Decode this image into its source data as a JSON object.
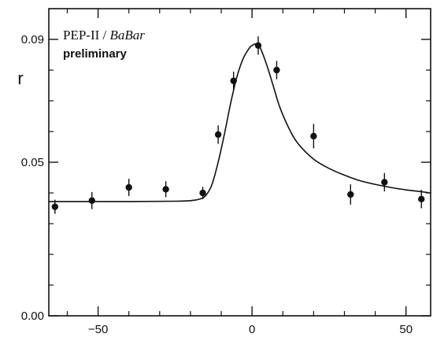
{
  "chart_data": {
    "type": "scatter",
    "title": "",
    "xlabel": "",
    "ylabel": "r",
    "xlim": [
      -66,
      58
    ],
    "ylim": [
      0.0,
      0.1
    ],
    "grid": false,
    "legend": "none",
    "annotations": {
      "experiment_plain": "PEP-II / ",
      "experiment_italic": "BaBar",
      "status": "preliminary"
    },
    "x_ticks": [
      {
        "value": -50,
        "label": "−50"
      },
      {
        "value": 0,
        "label": "0"
      },
      {
        "value": 50,
        "label": "50"
      }
    ],
    "x_minor_ticks": [
      -60,
      -40,
      -30,
      -20,
      -10,
      10,
      20,
      30,
      40
    ],
    "y_ticks": [
      {
        "value": 0.0,
        "label": "0.00"
      },
      {
        "value": 0.05,
        "label": "0.05"
      },
      {
        "value": 0.09,
        "label": "0.09"
      }
    ],
    "y_minor_ticks": [
      0.01,
      0.02,
      0.03,
      0.04,
      0.06,
      0.07,
      0.08
    ],
    "series": [
      {
        "kind": "points_with_errors",
        "points": [
          {
            "x": -64,
            "y": 0.0355,
            "err": 0.0023
          },
          {
            "x": -52,
            "y": 0.0375,
            "err": 0.0028
          },
          {
            "x": -40,
            "y": 0.0418,
            "err": 0.0028
          },
          {
            "x": -28,
            "y": 0.0412,
            "err": 0.0026
          },
          {
            "x": -16,
            "y": 0.04,
            "err": 0.002
          },
          {
            "x": -11,
            "y": 0.059,
            "err": 0.003
          },
          {
            "x": -6,
            "y": 0.0765,
            "err": 0.003
          },
          {
            "x": 2,
            "y": 0.088,
            "err": 0.003
          },
          {
            "x": 8,
            "y": 0.08,
            "err": 0.003
          },
          {
            "x": 20,
            "y": 0.0585,
            "err": 0.004
          },
          {
            "x": 32,
            "y": 0.0395,
            "err": 0.0033
          },
          {
            "x": 43,
            "y": 0.0435,
            "err": 0.003
          },
          {
            "x": 55,
            "y": 0.038,
            "err": 0.003
          }
        ]
      },
      {
        "kind": "fit_curve",
        "x": [
          -66,
          -40,
          -25,
          -20,
          -17,
          -15,
          -13,
          -11,
          -9,
          -7,
          -5,
          -3,
          -1,
          0,
          1,
          2,
          3,
          5,
          7,
          9,
          12,
          15,
          20,
          25,
          30,
          35,
          40,
          45,
          50,
          55,
          58
        ],
        "y": [
          0.0372,
          0.0372,
          0.0373,
          0.0375,
          0.038,
          0.0392,
          0.0428,
          0.05,
          0.059,
          0.069,
          0.0775,
          0.0835,
          0.087,
          0.088,
          0.0885,
          0.088,
          0.0865,
          0.081,
          0.0745,
          0.068,
          0.061,
          0.056,
          0.051,
          0.048,
          0.0458,
          0.044,
          0.0428,
          0.0418,
          0.041,
          0.0404,
          0.04
        ]
      }
    ]
  }
}
